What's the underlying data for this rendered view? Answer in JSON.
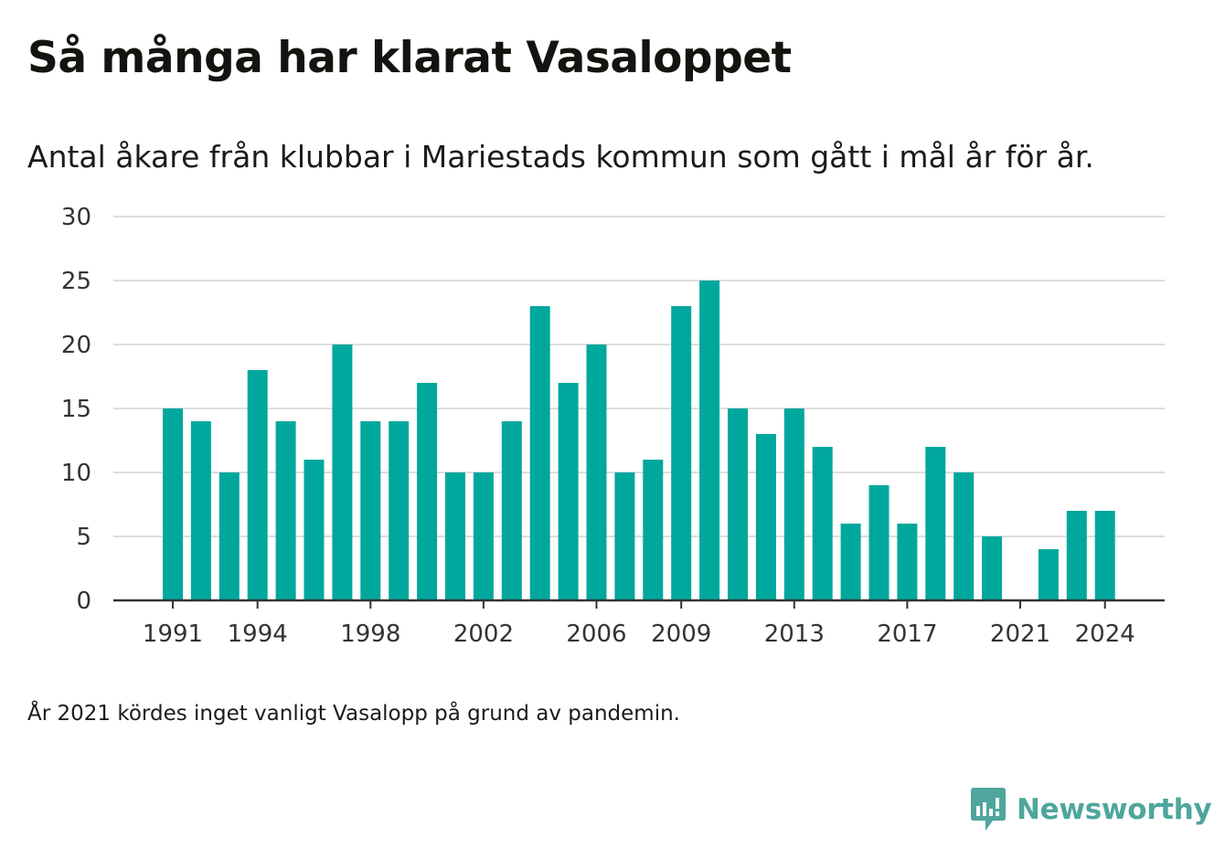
{
  "title": "Så många har klarat Vasaloppet",
  "subtitle": "Antal åkare från klubbar i Mariestads kommun som gått i mål år för år.",
  "note": "År 2021 kördes inget vanligt Vasalopp på grund av pandemin.",
  "brand": {
    "name": "Newsworthy",
    "color": "#4ea69d"
  },
  "chart_data": {
    "type": "bar",
    "title": "Så många har klarat Vasaloppet",
    "subtitle": "Antal åkare från klubbar i Mariestads kommun som gått i mål år för år.",
    "categories": [
      1991,
      1992,
      1993,
      1994,
      1995,
      1996,
      1997,
      1998,
      1999,
      2000,
      2001,
      2002,
      2003,
      2004,
      2005,
      2006,
      2007,
      2008,
      2009,
      2010,
      2011,
      2012,
      2013,
      2014,
      2015,
      2016,
      2017,
      2018,
      2019,
      2020,
      2021,
      2022,
      2023,
      2024
    ],
    "values": [
      15,
      14,
      10,
      18,
      14,
      11,
      20,
      14,
      14,
      17,
      10,
      10,
      14,
      23,
      17,
      20,
      10,
      11,
      23,
      25,
      15,
      13,
      15,
      12,
      6,
      9,
      6,
      12,
      10,
      5,
      0,
      4,
      7,
      7
    ],
    "x_tick_labels": [
      "1991",
      "1994",
      "1998",
      "2002",
      "2006",
      "2009",
      "2013",
      "2017",
      "2021",
      "2024"
    ],
    "y_ticks": [
      0,
      5,
      10,
      15,
      20,
      25,
      30
    ],
    "ylim": [
      0,
      30
    ],
    "xlabel": "",
    "ylabel": "",
    "grid": "horizontal",
    "bar_color": "#00a79d",
    "grid_color": "#dddddd"
  }
}
